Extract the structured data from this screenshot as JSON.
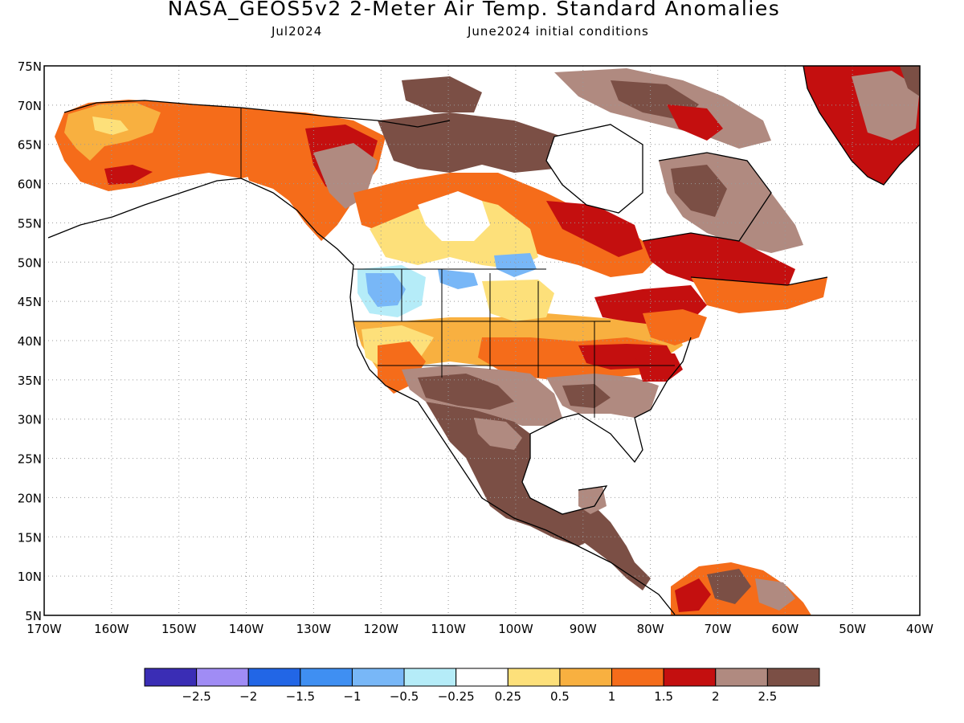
{
  "title": "NASA_GEOS5v2 2-Meter Air Temp. Standard Anomalies",
  "subtitle_left": "Jul2024",
  "subtitle_right": "June2024 initial conditions",
  "map": {
    "lon_range": [
      -170,
      -40
    ],
    "lat_range": [
      5,
      75
    ],
    "grid": "dotted",
    "lat_labels": [
      "75N",
      "70N",
      "65N",
      "60N",
      "55N",
      "50N",
      "45N",
      "40N",
      "35N",
      "30N",
      "25N",
      "20N",
      "15N",
      "10N",
      "5N"
    ],
    "lon_labels": [
      "170W",
      "160W",
      "150W",
      "140W",
      "130W",
      "120W",
      "110W",
      "100W",
      "90W",
      "80W",
      "70W",
      "60W",
      "50W",
      "40W"
    ]
  },
  "colorbar": {
    "colors": [
      "#3a2db5",
      "#a08cf5",
      "#2266e6",
      "#3f8ff2",
      "#78b7f7",
      "#b5ecf8",
      "#ffffff",
      "#fde07a",
      "#f8b040",
      "#f56c1a",
      "#c40f0f",
      "#b08a80",
      "#7b4f45"
    ],
    "labels": [
      "−2.5",
      "−2",
      "−1.5",
      "−1",
      "−0.5",
      "−0.25",
      "0.25",
      "0.5",
      "1",
      "1.5",
      "2",
      "2.5"
    ]
  }
}
